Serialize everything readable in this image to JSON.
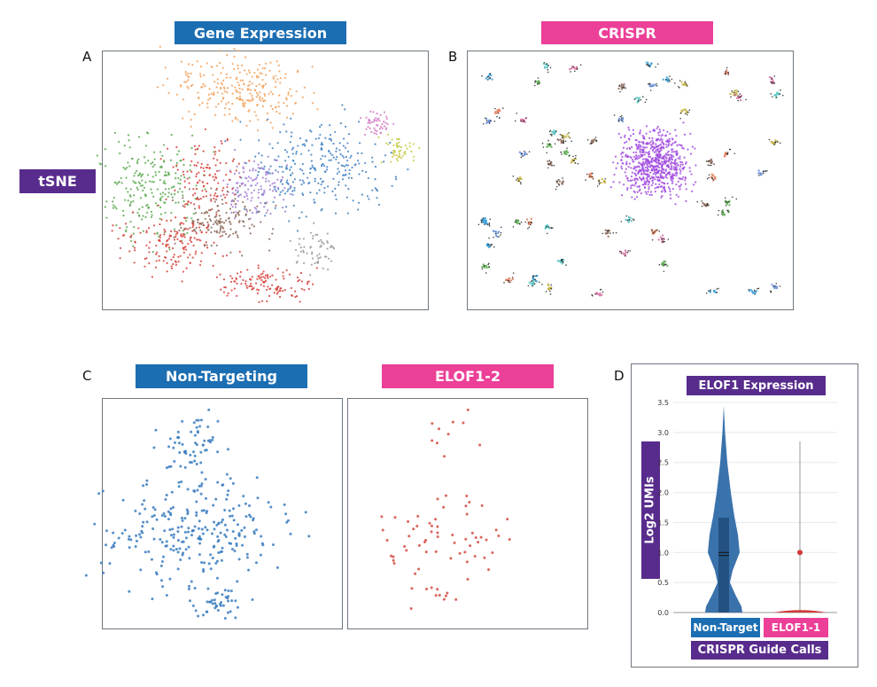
{
  "colors": {
    "blue": "#1c6eb2",
    "pink": "#ec3f98",
    "purple": "#582c8c"
  },
  "panels": {
    "A": {
      "letter": "A",
      "header": "Gene Expression"
    },
    "B": {
      "letter": "B",
      "header": "CRISPR"
    },
    "row_label": "tSNE",
    "C": {
      "letter": "C",
      "left_header": "Non-Targeting",
      "right_header": "ELOF1-2"
    },
    "D": {
      "letter": "D",
      "title": "ELOF1 Expression",
      "ylabel": "Log2 UMIs",
      "xlabel": "CRISPR Guide Calls",
      "categories": [
        "Non-Target",
        "ELOF1-1"
      ]
    }
  },
  "chart_data": [
    {
      "type": "scatter",
      "panel": "A",
      "title": "Gene Expression",
      "cluster_colors": [
        "#f2a05a",
        "#58a84c",
        "#d6403a",
        "#3f7fc0",
        "#a27ad4",
        "#8c6a5a",
        "#999999",
        "#d57ac4",
        "#c8c84a"
      ],
      "axes": "hidden"
    },
    {
      "type": "scatter",
      "panel": "B",
      "title": "CRISPR",
      "axes": "hidden"
    },
    {
      "type": "scatter",
      "panel": "C-left",
      "title": "Non-Targeting",
      "color": "#3a7dc0",
      "axes": "hidden"
    },
    {
      "type": "scatter",
      "panel": "C-right",
      "title": "ELOF1-2",
      "color": "#d44a3e",
      "axes": "hidden"
    },
    {
      "type": "violin",
      "panel": "D",
      "title": "ELOF1 Expression",
      "xlabel": "CRISPR Guide Calls",
      "ylabel": "Log2 UMIs",
      "ylim": [
        0,
        3.5
      ],
      "yticks": [
        "0.0",
        "0.5",
        "1.0",
        "1.5",
        "2.0",
        "2.5",
        "3.0",
        "3.5"
      ],
      "grid": true,
      "series": [
        {
          "name": "Non-Target",
          "color": "#2f6aa8",
          "min": 0,
          "q1": 0,
          "median": 1.0,
          "mean": 0.95,
          "q3": 1.58,
          "max": 3.45
        },
        {
          "name": "ELOF1-1",
          "color": "#d23a3a",
          "min": 0,
          "q1": 0,
          "median": 0,
          "q3": 0,
          "max": 2.85,
          "outlier": 1.0
        }
      ]
    }
  ]
}
